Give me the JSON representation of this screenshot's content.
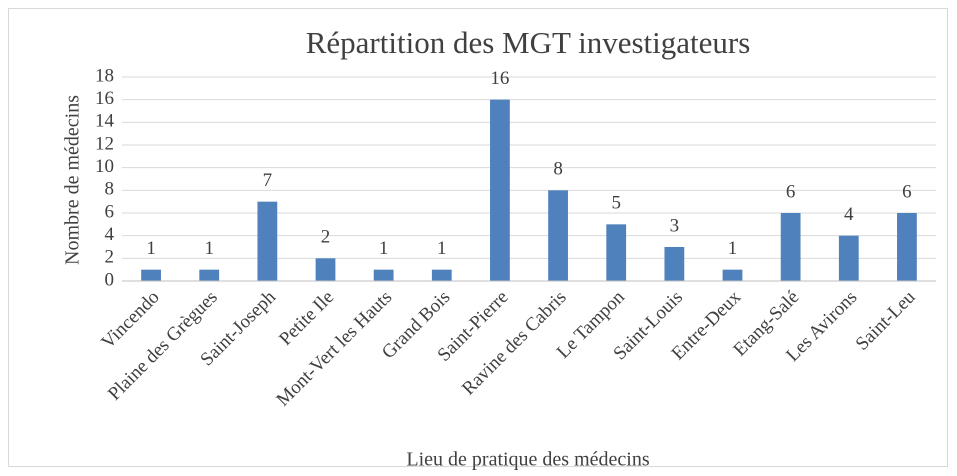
{
  "chart_data": {
    "type": "bar",
    "title": "Répartition des MGT investigateurs",
    "x_label": "Lieu de pratique des médecins",
    "y_label": "Nombre de médecins",
    "categories": [
      "Vincendo",
      "Plaine des Grègues",
      "Saint-Joseph",
      "Petite Ile",
      "Mont-Vert les Hauts",
      "Grand Bois",
      "Saint-Pierre",
      "Ravine des Cabris",
      "Le Tampon",
      "Saint-Louis",
      "Entre-Deux",
      "Etang-Salé",
      "Les Avirons",
      "Saint-Leu"
    ],
    "values": [
      1,
      1,
      7,
      2,
      1,
      1,
      16,
      8,
      5,
      3,
      1,
      6,
      4,
      6
    ],
    "color": "#4f81bd",
    "ylim": [
      0,
      18
    ],
    "yticks": [
      0,
      2,
      4,
      6,
      8,
      10,
      12,
      14,
      16,
      18
    ],
    "grid": true
  }
}
